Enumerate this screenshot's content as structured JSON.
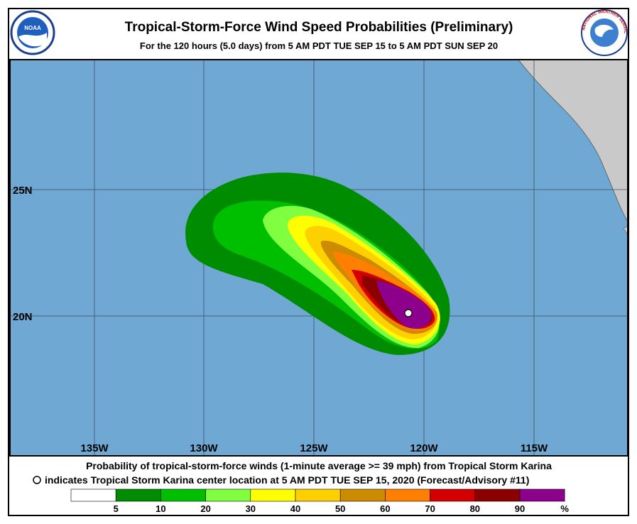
{
  "header": {
    "title": "Tropical-Storm-Force Wind Speed Probabilities (Preliminary)",
    "subtitle": "For the 120 hours (5.0 days) from 5 AM PDT TUE SEP 15 to 5 AM PDT SUN SEP 20",
    "left_logo": "NOAA",
    "right_logo": "NATIONAL WEATHER SERVICE"
  },
  "map": {
    "longitude_labels": [
      "135W",
      "130W",
      "125W",
      "120W",
      "115W"
    ],
    "latitude_labels": [
      "25N",
      "20N"
    ]
  },
  "footer": {
    "line1": "Probability of tropical-storm-force winds (1-minute average >= 39 mph) from Tropical Storm Karina",
    "line2": "indicates Tropical Storm Karina center location at 5 AM PDT TUE SEP 15, 2020 (Forecast/Advisory #11)",
    "legend_labels": [
      "5",
      "10",
      "20",
      "30",
      "40",
      "50",
      "60",
      "70",
      "80",
      "90"
    ],
    "legend_unit": "%"
  }
}
